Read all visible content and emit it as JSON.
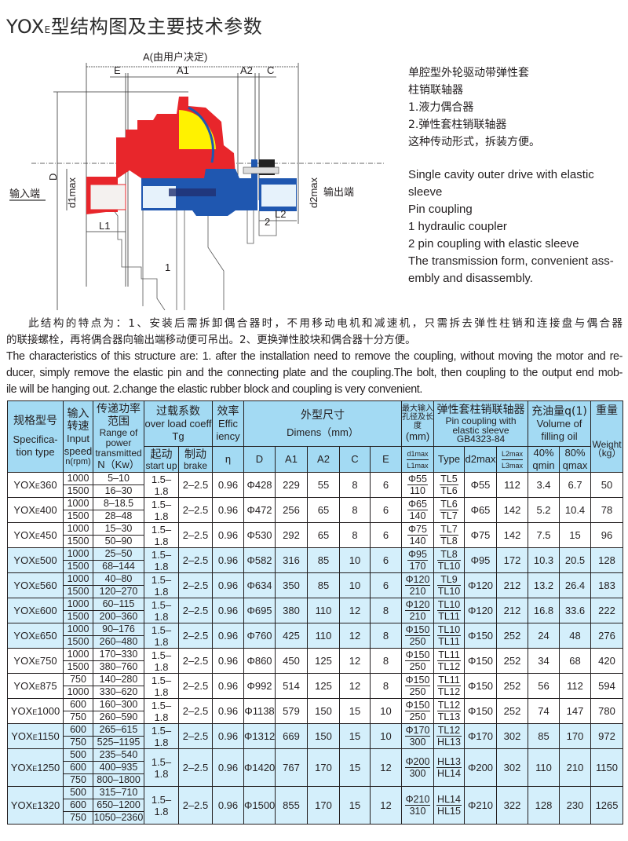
{
  "title": {
    "prefix": "YOX",
    "sub": "E",
    "rest": "型结构图及主要技术参数"
  },
  "diagram": {
    "labels": {
      "A": "A(由用户决定)",
      "E": "E",
      "A1": "A1",
      "A2": "A2",
      "C": "C",
      "D": "D",
      "d1max": "d1max",
      "d2max": "d2max",
      "input": "输入端",
      "output": "输出端",
      "L1": "L1",
      "L2": "L2",
      "part1": "1",
      "part2": "2"
    },
    "colors": {
      "housing": "#e8262b",
      "shaft": "#1f57b0",
      "turbine": "#fff200"
    }
  },
  "description": {
    "zh": [
      "单腔型外轮驱动带弹性套",
      "柱销联轴器",
      "1.液力偶合器",
      "2.弹性套柱销联轴器",
      "这种传动形式，拆装方便。"
    ],
    "en": [
      "Single cavity outer drive with elastic sleeve",
      "Pin coupling",
      "1 hydraulic coupler",
      "2 pin coupling with elastic sleeve",
      "The transmission form, convenient ass-",
      "embly and disassembly."
    ]
  },
  "features": {
    "zh": [
      "此结构的特点为：1、安装后需拆卸偶合器时，不用移动电机和减速机，只需拆去弹性柱销和连接盘与偶合器",
      "的联接螺栓，再将偶合器向输出端移动便可吊出。2、更换弹性胶块和偶合器十分方便。"
    ],
    "en": [
      "The characteristics of this structure are: 1. after the installation need to remove the coupling, without moving the motor and re-",
      "ducer, simply remove the elastic pin and the connecting plate and the coupling.The bolt, then coupling to the output end mob-",
      "ile will be hanging out. 2.change the elastic rubber block and coupling is very convenient."
    ]
  },
  "table": {
    "header": {
      "spec": {
        "zh": "规格型号",
        "en": "Specifica-tion type"
      },
      "speed": {
        "zh": "输入转速",
        "en": "Input speed",
        "unit": "n(rpm)"
      },
      "power": {
        "zh": "传递功率范围",
        "en": "Range of power transmitted",
        "unit": "N（Kw）"
      },
      "overload": {
        "zh": "过载系数",
        "en": "over load coeff  Tg"
      },
      "start": {
        "zh": "起动",
        "en": "start up"
      },
      "brake": {
        "zh": "制动",
        "en": "brake"
      },
      "eff": {
        "zh": "效率",
        "en": "Effic iency",
        "sym": "η"
      },
      "dimens": {
        "zh": "外型尺寸",
        "en": "Dimens（mm）"
      },
      "dims": [
        "D",
        "A1",
        "A2",
        "C",
        "E"
      ],
      "bore": {
        "zh": "最大输入孔径及长度",
        "unit": "(mm)",
        "top": "d1max",
        "bottom": "L1max"
      },
      "pin": {
        "zh": "弹性套柱销联轴器",
        "en": "Pin coupling with elastic sleeve",
        "std": "GB4323-84",
        "type": "Type",
        "d2max": "d2max",
        "l_top": "L2max",
        "l_bottom": "L3max"
      },
      "oil": {
        "zh": "充油量q(1)",
        "en": "Volume of filling oil",
        "min_pct": "40%",
        "min": "qmin",
        "max_pct": "80%",
        "max": "qmax"
      },
      "weight": {
        "zh": "重量",
        "en": "Weight",
        "unit": "（kg）"
      }
    },
    "highlight_color": "#d4effb",
    "header_color": "#a3daf3",
    "rows": [
      {
        "model": "360",
        "speeds": [
          "1000",
          "1500"
        ],
        "power": [
          "5–10",
          "16–30"
        ],
        "start": "1.5–1.8",
        "brake": "2–2.5",
        "eff": "0.96",
        "D": "Φ428",
        "A1": "229",
        "A2": "55",
        "C": "8",
        "E": "6",
        "bore": [
          "Φ55",
          "110"
        ],
        "type": [
          "TL5",
          "TL6"
        ],
        "d2max": "Φ55",
        "L2": "112",
        "qmin": "3.4",
        "qmax": "6.7",
        "weight": "50",
        "shaded": false
      },
      {
        "model": "400",
        "speeds": [
          "1000",
          "1500"
        ],
        "power": [
          "8–18.5",
          "28–48"
        ],
        "start": "1.5–1.8",
        "brake": "2–2.5",
        "eff": "0.96",
        "D": "Φ472",
        "A1": "256",
        "A2": "65",
        "C": "8",
        "E": "6",
        "bore": [
          "Φ65",
          "140"
        ],
        "type": [
          "TL6",
          "TL7"
        ],
        "d2max": "Φ65",
        "L2": "142",
        "qmin": "5.2",
        "qmax": "10.4",
        "weight": "78",
        "shaded": false
      },
      {
        "model": "450",
        "speeds": [
          "1000",
          "1500"
        ],
        "power": [
          "15–30",
          "50–90"
        ],
        "start": "1.5–1.8",
        "brake": "2–2.5",
        "eff": "0.96",
        "D": "Φ530",
        "A1": "292",
        "A2": "65",
        "C": "8",
        "E": "6",
        "bore": [
          "Φ75",
          "140"
        ],
        "type": [
          "TL7",
          "TL8"
        ],
        "d2max": "Φ75",
        "L2": "142",
        "qmin": "7.5",
        "qmax": "15",
        "weight": "96",
        "shaded": false
      },
      {
        "model": "500",
        "speeds": [
          "1000",
          "1500"
        ],
        "power": [
          "25–50",
          "68–144"
        ],
        "start": "1.5–1.8",
        "brake": "2–2.5",
        "eff": "0.96",
        "D": "Φ582",
        "A1": "316",
        "A2": "85",
        "C": "10",
        "E": "6",
        "bore": [
          "Φ95",
          "170"
        ],
        "type": [
          "TL8",
          "TL10"
        ],
        "d2max": "Φ95",
        "L2": "172",
        "qmin": "10.3",
        "qmax": "20.5",
        "weight": "128",
        "shaded": true
      },
      {
        "model": "560",
        "speeds": [
          "1000",
          "1500"
        ],
        "power": [
          "40–80",
          "120–270"
        ],
        "start": "1.5–1.8",
        "brake": "2–2.5",
        "eff": "0.96",
        "D": "Φ634",
        "A1": "350",
        "A2": "85",
        "C": "10",
        "E": "6",
        "bore": [
          "Φ120",
          "210"
        ],
        "type": [
          "TL9",
          "TL10"
        ],
        "d2max": "Φ120",
        "L2": "212",
        "qmin": "13.2",
        "qmax": "26.4",
        "weight": "183",
        "shaded": true
      },
      {
        "model": "600",
        "speeds": [
          "1000",
          "1500"
        ],
        "power": [
          "60–115",
          "200–360"
        ],
        "start": "1.5–1.8",
        "brake": "2–2.5",
        "eff": "0.96",
        "D": "Φ695",
        "A1": "380",
        "A2": "110",
        "C": "12",
        "E": "8",
        "bore": [
          "Φ120",
          "210"
        ],
        "type": [
          "TL10",
          "TL11"
        ],
        "d2max": "Φ120",
        "L2": "212",
        "qmin": "16.8",
        "qmax": "33.6",
        "weight": "222",
        "shaded": true
      },
      {
        "model": "650",
        "speeds": [
          "1000",
          "1500"
        ],
        "power": [
          "90–176",
          "260–480"
        ],
        "start": "1.5–1.8",
        "brake": "2–2.5",
        "eff": "0.96",
        "D": "Φ760",
        "A1": "425",
        "A2": "110",
        "C": "12",
        "E": "8",
        "bore": [
          "Φ150",
          "250"
        ],
        "type": [
          "TL10",
          "TL11"
        ],
        "d2max": "Φ150",
        "L2": "252",
        "qmin": "24",
        "qmax": "48",
        "weight": "276",
        "shaded": true
      },
      {
        "model": "750",
        "speeds": [
          "1000",
          "1500"
        ],
        "power": [
          "170–330",
          "380–760"
        ],
        "start": "1.5–1.8",
        "brake": "2–2.5",
        "eff": "0.96",
        "D": "Φ860",
        "A1": "450",
        "A2": "125",
        "C": "12",
        "E": "8",
        "bore": [
          "Φ150",
          "250"
        ],
        "type": [
          "TL11",
          "TL12"
        ],
        "d2max": "Φ150",
        "L2": "252",
        "qmin": "34",
        "qmax": "68",
        "weight": "420",
        "shaded": false
      },
      {
        "model": "875",
        "speeds": [
          "750",
          "1000"
        ],
        "power": [
          "140–280",
          "330–620"
        ],
        "start": "1.5–1.8",
        "brake": "2–2.5",
        "eff": "0.96",
        "D": "Φ992",
        "A1": "514",
        "A2": "125",
        "C": "12",
        "E": "8",
        "bore": [
          "Φ150",
          "250"
        ],
        "type": [
          "TL11",
          "TL12"
        ],
        "d2max": "Φ150",
        "L2": "252",
        "qmin": "56",
        "qmax": "112",
        "weight": "594",
        "shaded": false
      },
      {
        "model": "1000",
        "speeds": [
          "600",
          "750"
        ],
        "power": [
          "160–300",
          "260–590"
        ],
        "start": "1.5–1.8",
        "brake": "2–2.5",
        "eff": "0.96",
        "D": "Φ1138",
        "A1": "579",
        "A2": "150",
        "C": "15",
        "E": "10",
        "bore": [
          "Φ150",
          "250"
        ],
        "type": [
          "TL12",
          "TL13"
        ],
        "d2max": "Φ150",
        "L2": "252",
        "qmin": "74",
        "qmax": "147",
        "weight": "780",
        "shaded": false
      },
      {
        "model": "1150",
        "speeds": [
          "600",
          "750"
        ],
        "power": [
          "265–615",
          "525–1195"
        ],
        "start": "1.5–1.8",
        "brake": "2–2.5",
        "eff": "0.96",
        "D": "Φ1312",
        "A1": "669",
        "A2": "150",
        "C": "15",
        "E": "10",
        "bore": [
          "Φ170",
          "300"
        ],
        "type": [
          "TL12",
          "HL13"
        ],
        "d2max": "Φ170",
        "L2": "302",
        "qmin": "85",
        "qmax": "170",
        "weight": "972",
        "shaded": true
      },
      {
        "model": "1250",
        "speeds": [
          "500",
          "600",
          "750"
        ],
        "power": [
          "235–540",
          "400–935",
          "800–1800"
        ],
        "start": "1.5–1.8",
        "brake": "2–2.5",
        "eff": "0.96",
        "D": "Φ1420",
        "A1": "767",
        "A2": "170",
        "C": "15",
        "E": "12",
        "bore": [
          "Φ200",
          "300"
        ],
        "type": [
          "HL13",
          "HL14"
        ],
        "d2max": "Φ200",
        "L2": "302",
        "qmin": "110",
        "qmax": "210",
        "weight": "1150",
        "shaded": true
      },
      {
        "model": "1320",
        "speeds": [
          "500",
          "600",
          "750"
        ],
        "power": [
          "315–710",
          "650–1200",
          "1050–2360"
        ],
        "start": "1.5–1.8",
        "brake": "2–2.5",
        "eff": "0.96",
        "D": "Φ1500",
        "A1": "855",
        "A2": "170",
        "C": "15",
        "E": "12",
        "bore": [
          "Φ210",
          "310"
        ],
        "type": [
          "HL14",
          "HL15"
        ],
        "d2max": "Φ210",
        "L2": "322",
        "qmin": "128",
        "qmax": "230",
        "weight": "1265",
        "shaded": true
      }
    ]
  }
}
